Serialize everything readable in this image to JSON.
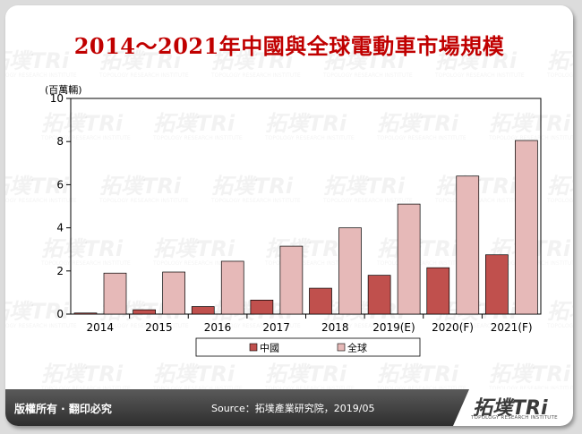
{
  "chart_data": {
    "type": "bar",
    "title": "2014～2021年中國與全球電動車市場規模",
    "unit_label": "(百萬輛)",
    "categories": [
      "2014",
      "2015",
      "2016",
      "2017",
      "2018",
      "2019(E)",
      "2020(F)",
      "2021(F)"
    ],
    "series": [
      {
        "name": "中國",
        "values": [
          0.05,
          0.2,
          0.35,
          0.65,
          1.2,
          1.8,
          2.15,
          2.75
        ]
      },
      {
        "name": "全球",
        "values": [
          1.9,
          1.95,
          2.45,
          3.15,
          4.0,
          5.1,
          6.4,
          8.05
        ]
      }
    ],
    "ylim": [
      0,
      10
    ],
    "yticks": [
      0,
      2,
      4,
      6,
      8,
      10
    ],
    "grid": false,
    "legend_position": "bottom"
  },
  "colors": {
    "china": "#c0504d",
    "global": "#e6b9b8",
    "title": "#c00000"
  },
  "footer": {
    "rights": "版權所有 · 翻印必究",
    "source": "Source：拓墣產業研究院，2019/05"
  },
  "logo": {
    "text": "拓墣TRi",
    "subtitle": "TOPOLOGY RESEARCH INSTITUTE",
    "watermark_text": "拓墣TRi",
    "watermark_sub": "TOPOLOGY RESEARCH INSTITUTE"
  }
}
